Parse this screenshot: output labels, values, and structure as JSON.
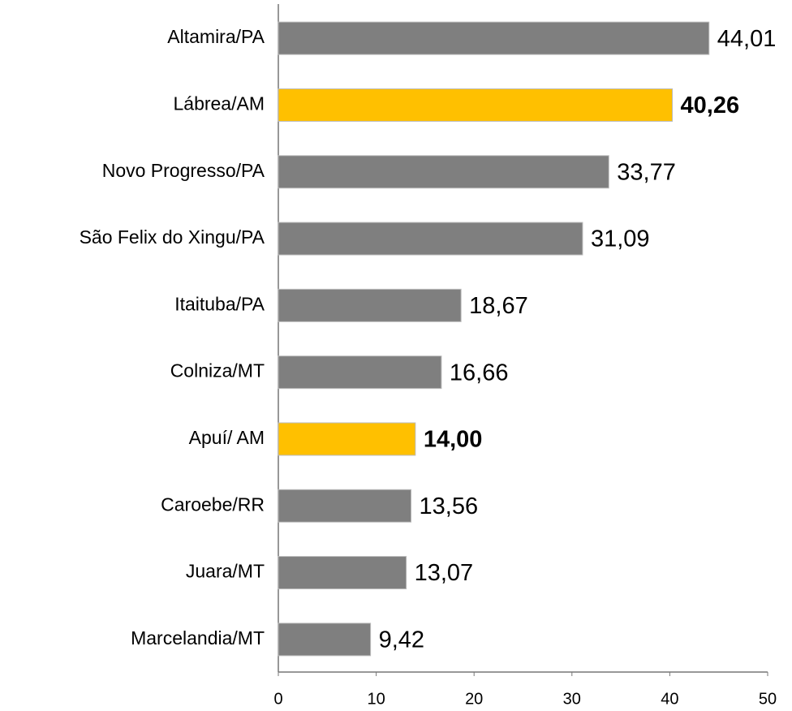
{
  "chart_data": {
    "type": "bar",
    "orientation": "horizontal",
    "categories": [
      "Altamira/PA",
      "Lábrea/AM",
      "Novo Progresso/PA",
      "São Felix do Xingu/PA",
      "Itaituba/PA",
      "Colniza/MT",
      "Apuí/ AM",
      "Caroebe/RR",
      "Juara/MT",
      "Marcelandia/MT"
    ],
    "values": [
      44.01,
      40.26,
      33.77,
      31.09,
      18.67,
      16.66,
      14.0,
      13.56,
      13.07,
      9.42
    ],
    "value_labels": [
      "44,01",
      "40,26",
      "33,77",
      "31,09",
      "18,67",
      "16,66",
      "14,00",
      "13,56",
      "13,07",
      "9,42"
    ],
    "value_label_bold": [
      false,
      true,
      false,
      false,
      false,
      false,
      true,
      false,
      false,
      false
    ],
    "colors": [
      "#7f7f7f",
      "#ffc000",
      "#7f7f7f",
      "#7f7f7f",
      "#7f7f7f",
      "#7f7f7f",
      "#ffc000",
      "#7f7f7f",
      "#7f7f7f",
      "#7f7f7f"
    ],
    "xlim": [
      0,
      50
    ],
    "xticks": [
      0,
      10,
      20,
      30,
      40,
      50
    ],
    "grid": false
  }
}
